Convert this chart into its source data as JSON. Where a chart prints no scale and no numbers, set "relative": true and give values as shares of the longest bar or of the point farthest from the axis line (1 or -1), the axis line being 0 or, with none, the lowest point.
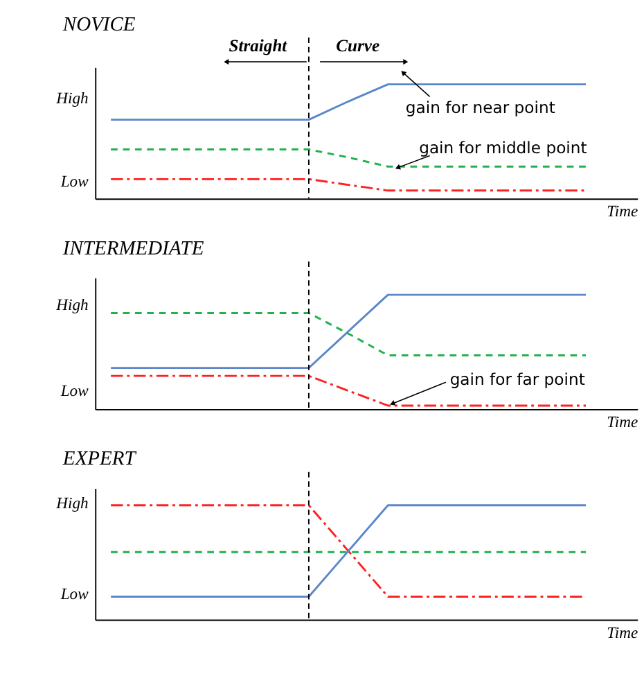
{
  "chart_data": [
    {
      "type": "line",
      "relative": true,
      "tick_labels": false,
      "title": "NOVICE",
      "xlabel": "Time",
      "categories": [
        null,
        null,
        null,
        null,
        null,
        null,
        null,
        null,
        null,
        null,
        null,
        null,
        null
      ],
      "series": [
        {
          "color": "#5b87c9",
          "line_style": "solid",
          "values": [
            0.69,
            0.69,
            0.69,
            0.69,
            0.69,
            0.69,
            0.85,
            1,
            1,
            1,
            1,
            1,
            1
          ]
        },
        {
          "color": "#22b14c",
          "line_style": "dashed",
          "values": [
            0.43,
            0.43,
            0.43,
            0.43,
            0.43,
            0.43,
            0.36,
            0.28,
            0.28,
            0.28,
            0.28,
            0.28,
            0.28
          ]
        },
        {
          "color": "#ff2020",
          "line_style": "dashdot",
          "values": [
            0.17,
            0.17,
            0.17,
            0.17,
            0.17,
            0.17,
            0.12,
            0.07,
            0.07,
            0.07,
            0.07,
            0.07,
            0.07
          ]
        }
      ],
      "annotations": [
        "High",
        "Low",
        "Straight",
        "Curve",
        "gain for near point",
        "gain for middle point"
      ]
    },
    {
      "type": "line",
      "relative": true,
      "tick_labels": false,
      "title": "INTERMEDIATE",
      "xlabel": "Time",
      "categories": [
        null,
        null,
        null,
        null,
        null,
        null,
        null,
        null,
        null,
        null,
        null,
        null,
        null
      ],
      "series": [
        {
          "color": "#5b87c9",
          "line_style": "solid",
          "values": [
            0.36,
            0.36,
            0.36,
            0.36,
            0.36,
            0.36,
            0.68,
            1,
            1,
            1,
            1,
            1,
            1
          ]
        },
        {
          "color": "#22b14c",
          "line_style": "dashed",
          "values": [
            0.84,
            0.84,
            0.84,
            0.84,
            0.84,
            0.84,
            0.66,
            0.47,
            0.47,
            0.47,
            0.47,
            0.47,
            0.47
          ]
        },
        {
          "color": "#ff2020",
          "line_style": "dashdot",
          "values": [
            0.29,
            0.29,
            0.29,
            0.29,
            0.29,
            0.29,
            0.16,
            0.03,
            0.03,
            0.03,
            0.03,
            0.03,
            0.03
          ]
        }
      ],
      "annotations": [
        "High",
        "Low",
        "gain for far point"
      ]
    },
    {
      "type": "line",
      "relative": true,
      "tick_labels": false,
      "title": "EXPERT",
      "xlabel": "Time",
      "categories": [
        null,
        null,
        null,
        null,
        null,
        null,
        null,
        null,
        null,
        null,
        null,
        null,
        null
      ],
      "series": [
        {
          "color": "#ff2020",
          "line_style": "dashdot",
          "values": [
            1,
            1,
            1,
            1,
            1,
            1,
            0.6,
            0.2,
            0.2,
            0.2,
            0.2,
            0.2,
            0.2
          ]
        },
        {
          "color": "#22b14c",
          "line_style": "dashed",
          "values": [
            0.59,
            0.59,
            0.59,
            0.59,
            0.59,
            0.59,
            0.59,
            0.59,
            0.59,
            0.59,
            0.59,
            0.59,
            0.59
          ]
        },
        {
          "color": "#5b87c9",
          "line_style": "solid",
          "values": [
            0.2,
            0.2,
            0.2,
            0.2,
            0.2,
            0.2,
            0.6,
            1,
            1,
            1,
            1,
            1,
            1
          ]
        }
      ],
      "annotations": [
        "High",
        "Low"
      ]
    }
  ]
}
